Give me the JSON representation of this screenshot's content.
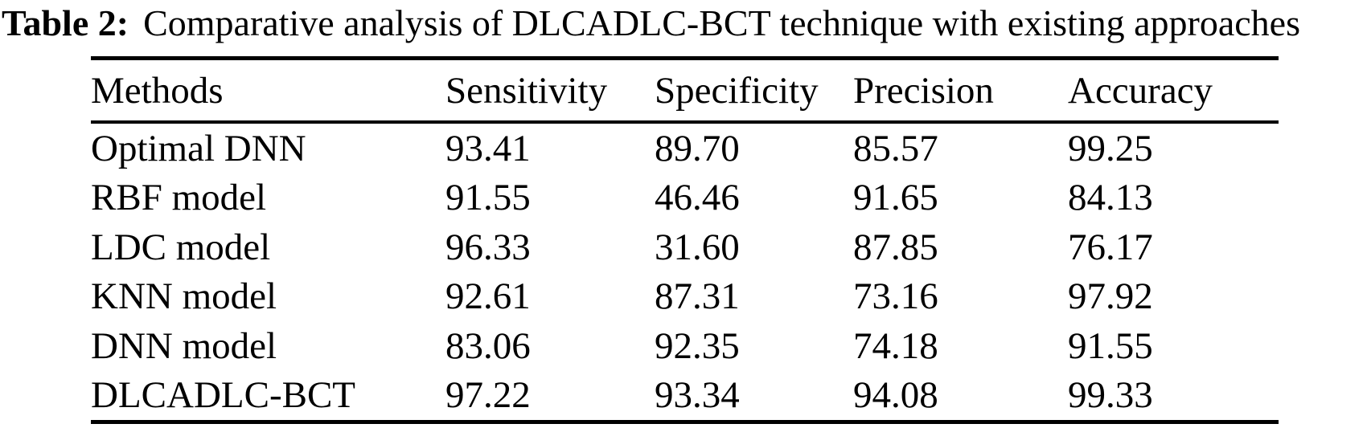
{
  "caption": {
    "label": "Table 2:",
    "text": "Comparative analysis of DLCADLC-BCT technique with existing approaches"
  },
  "chart_data": {
    "type": "table",
    "title": "Table 2: Comparative analysis of DLCADLC-BCT technique with existing approaches",
    "columns": [
      "Methods",
      "Sensitivity",
      "Specificity",
      "Precision",
      "Accuracy"
    ],
    "rows": [
      {
        "method": "Optimal DNN",
        "values": [
          "93.41",
          "89.70",
          "85.57",
          "99.25"
        ]
      },
      {
        "method": "RBF model",
        "values": [
          "91.55",
          "46.46",
          "91.65",
          "84.13"
        ]
      },
      {
        "method": "LDC model",
        "values": [
          "96.33",
          "31.60",
          "87.85",
          "76.17"
        ]
      },
      {
        "method": "KNN model",
        "values": [
          "92.61",
          "87.31",
          "73.16",
          "97.92"
        ]
      },
      {
        "method": "DNN model",
        "values": [
          "83.06",
          "92.35",
          "74.18",
          "91.55"
        ]
      },
      {
        "method": "DLCADLC-BCT",
        "values": [
          "97.22",
          "93.34",
          "94.08",
          "99.33"
        ]
      }
    ]
  },
  "colors": {
    "text": "#000000",
    "background": "#ffffff",
    "rule": "#000000"
  }
}
